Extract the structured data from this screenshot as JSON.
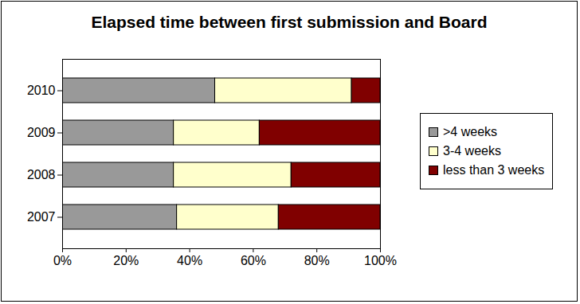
{
  "chart_data": {
    "type": "bar",
    "title": "Elapsed time between first submission and Board",
    "orientation": "horizontal",
    "stacked": true,
    "categories": [
      "2010",
      "2009",
      "2008",
      "2007"
    ],
    "series": [
      {
        "name": ">4 weeks",
        "color": "#999999",
        "values": [
          48,
          35,
          35,
          36
        ]
      },
      {
        "name": "3-4 weeks",
        "color": "#ffffcc",
        "values": [
          43,
          27,
          37,
          32
        ]
      },
      {
        "name": "less than 3 weeks",
        "color": "#800000",
        "values": [
          9,
          38,
          28,
          32
        ]
      }
    ],
    "xlim": [
      0,
      100
    ],
    "xticks": [
      {
        "value": 0,
        "label": "0%"
      },
      {
        "value": 20,
        "label": "20%"
      },
      {
        "value": 40,
        "label": "40%"
      },
      {
        "value": 60,
        "label": "60%"
      },
      {
        "value": 80,
        "label": "80%"
      },
      {
        "value": 100,
        "label": "100%"
      }
    ],
    "grid": false,
    "legend": "right"
  }
}
